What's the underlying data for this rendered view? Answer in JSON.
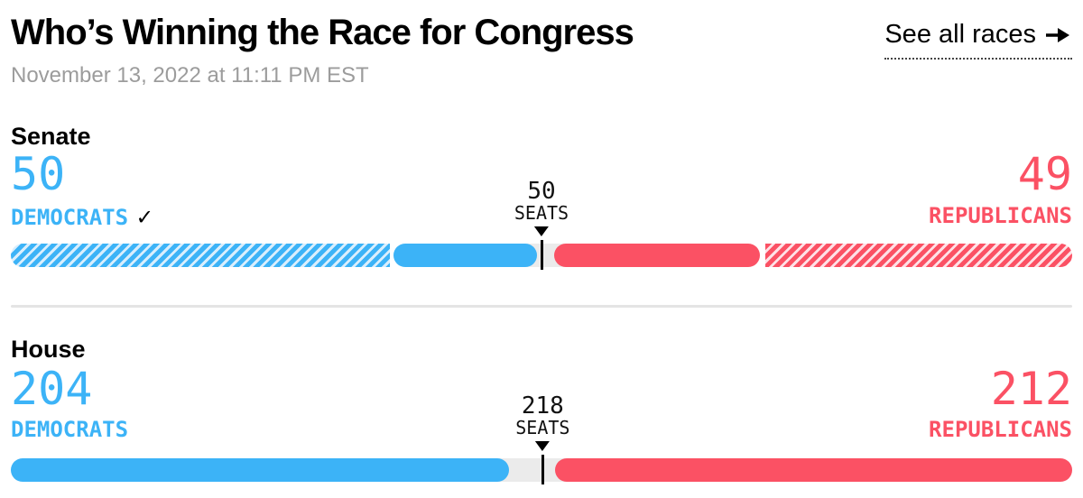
{
  "header": {
    "title": "Who’s Winning the Race for Congress",
    "timestamp": "November 13, 2022 at 11:11 PM EST",
    "see_all_label": "See all races"
  },
  "colors": {
    "democrat": "#3CB3F7",
    "republican": "#FB5164",
    "democrat_hatch_light": "#D9EEFD",
    "republican_hatch_light": "#FEE1E6",
    "undecided_track": "#EBEBEB"
  },
  "chart_data": [
    {
      "type": "bar",
      "chamber": "Senate",
      "total_seats": 100,
      "democrats": {
        "seats": 50,
        "display": "50",
        "label": "DEMOCRATS",
        "check_icon": "✓",
        "holdover_seats": 36,
        "elected_seats": 14
      },
      "republicans": {
        "seats": 49,
        "display": "49",
        "label": "REPUBLICANS",
        "holdover_seats": 29,
        "elected_seats": 20
      },
      "undecided_seats": 1,
      "majority_marker": {
        "seats": 50,
        "value": "50",
        "label": "SEATS"
      }
    },
    {
      "type": "bar",
      "chamber": "House",
      "total_seats": 435,
      "democrats": {
        "seats": 204,
        "display": "204",
        "label": "DEMOCRATS"
      },
      "republicans": {
        "seats": 212,
        "display": "212",
        "label": "REPUBLICANS"
      },
      "undecided_seats": 19,
      "majority_marker": {
        "seats": 218,
        "value": "218",
        "label": "SEATS"
      }
    }
  ]
}
